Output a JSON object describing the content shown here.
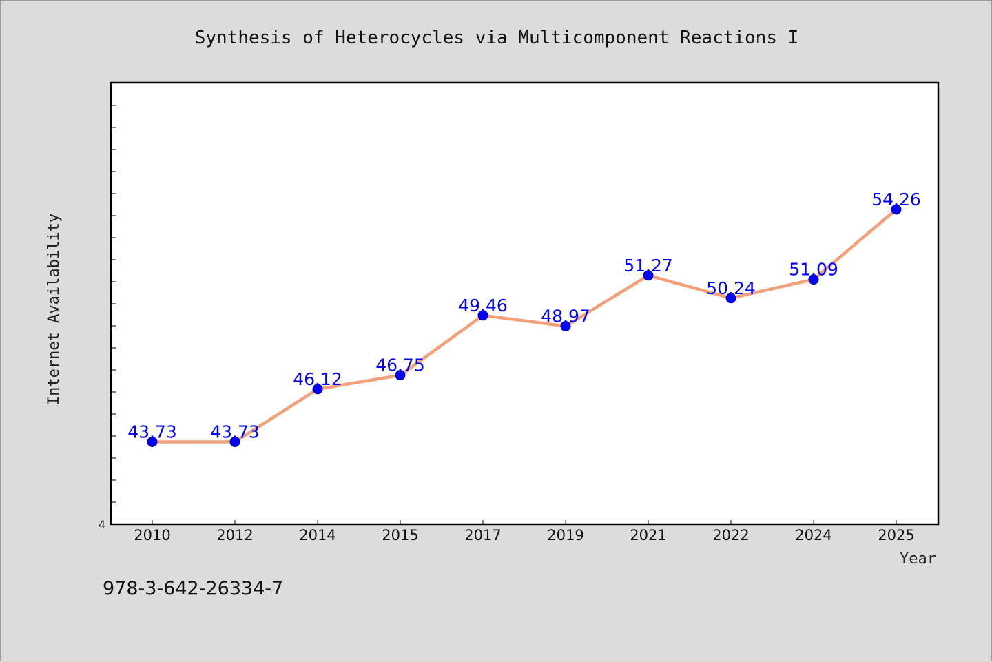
{
  "chart_data": {
    "type": "line",
    "title": "Synthesis of Heterocycles via Multicomponent Reactions I",
    "xlabel": "Year",
    "ylabel": "Internet Availability",
    "categories": [
      "2010",
      "2012",
      "2014",
      "2015",
      "2017",
      "2019",
      "2021",
      "2022",
      "2024",
      "2025"
    ],
    "series": [
      {
        "values": [
          43.73,
          43.73,
          46.12,
          46.75,
          49.46,
          48.97,
          51.27,
          50.24,
          51.09,
          54.26
        ],
        "data_labels": [
          "43.73",
          "43.73",
          "46.12",
          "46.75",
          "49.46",
          "48.97",
          "51.27",
          "50.24",
          "51.09",
          "54.26"
        ]
      }
    ],
    "ylim": [
      40.0,
      60.0
    ],
    "yticks": [
      "4"
    ],
    "grid": false,
    "legend": "none",
    "colors": {
      "line": "#f4a07a",
      "marker": "#0000ff",
      "marker_edge": "#00008b",
      "data_label": "#0000ff",
      "plot_background": "#ffffff",
      "figure_background": "#dcdcdc"
    }
  },
  "footer": {
    "isbn": "978-3-642-26334-7"
  }
}
